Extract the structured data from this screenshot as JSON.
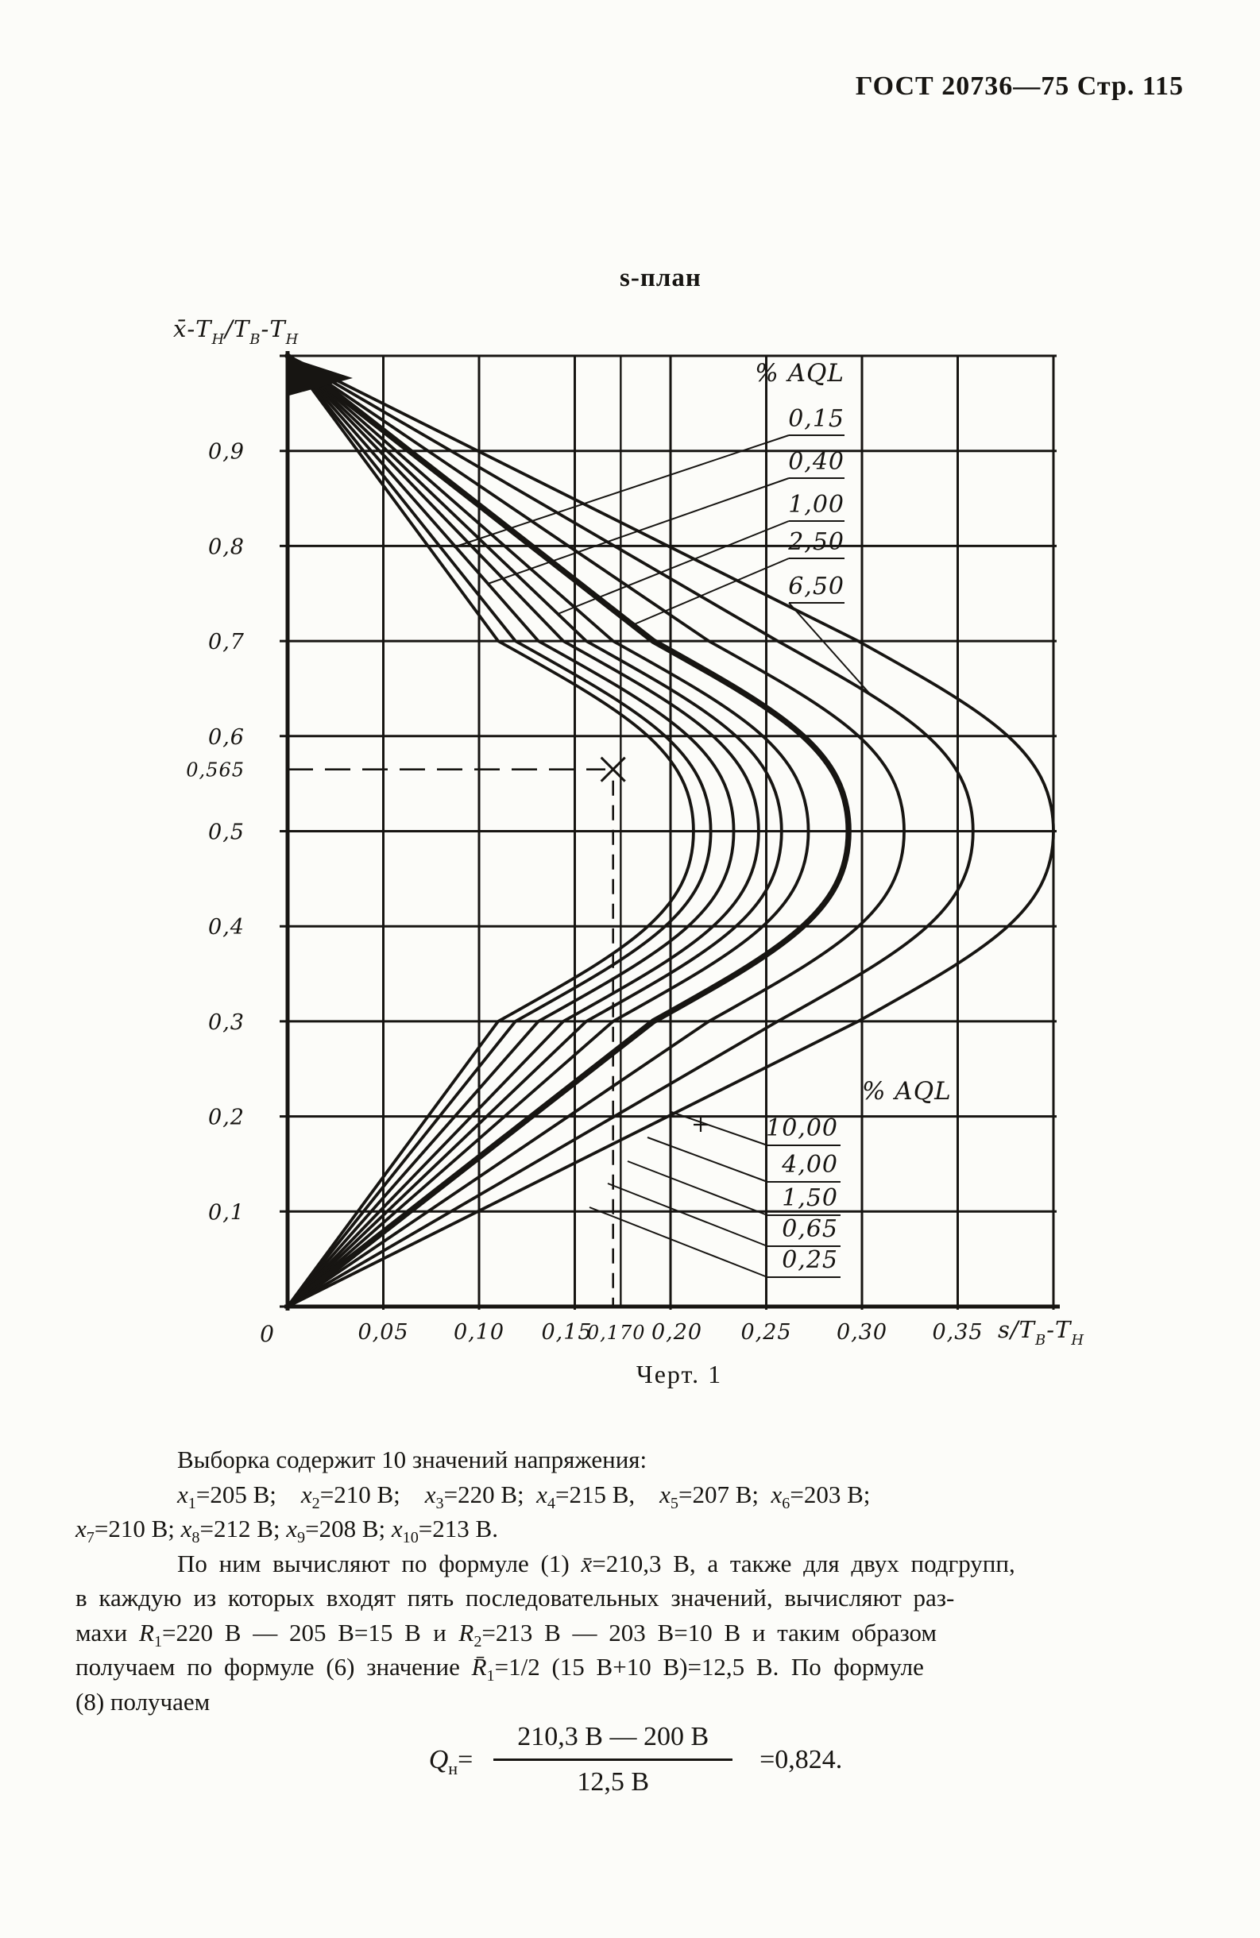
{
  "header": {
    "text": "ГОСТ 20736—75 Стр. 115"
  },
  "figure": {
    "title": "s-план",
    "caption": "Черт. 1"
  },
  "chart_data": {
    "type": "line",
    "title": "s-план",
    "x_axis_label": "s/Т_{В}-Т_{Н}",
    "y_axis_label": "x̄-Т_{Н}/Т_{В}-Т_{Н}",
    "x_range": [
      0,
      0.4
    ],
    "y_range": [
      0,
      1.0
    ],
    "grid": true,
    "origin_label": "0",
    "x_tick_values": [
      0.05,
      0.1,
      0.15,
      0.2,
      0.25,
      0.3,
      0.35
    ],
    "x_tick_labels": [
      "0,05",
      "0,10",
      "0,15",
      "0,20",
      "0,25",
      "0,30",
      "0,35"
    ],
    "x_special_tick": {
      "value": 0.17,
      "label": "0,170"
    },
    "y_tick_values": [
      0.1,
      0.2,
      0.3,
      0.4,
      0.5,
      0.6,
      0.7,
      0.8,
      0.9
    ],
    "y_tick_labels": [
      "0,1",
      "0,2",
      "0,3",
      "0,4",
      "0,5",
      "0,6",
      "0,7",
      "0,8",
      "0,9"
    ],
    "y_special_tick": {
      "value": 0.565,
      "label": "0,565"
    },
    "group_label": "% AQL",
    "curves": [
      {
        "aql": "0,15",
        "nose_s": 0.212,
        "thick": false
      },
      {
        "aql": "0,25",
        "nose_s": 0.221,
        "thick": false
      },
      {
        "aql": "0,40",
        "nose_s": 0.233,
        "thick": false
      },
      {
        "aql": "0,65",
        "nose_s": 0.246,
        "thick": false
      },
      {
        "aql": "1,00",
        "nose_s": 0.258,
        "thick": false
      },
      {
        "aql": "1,50",
        "nose_s": 0.272,
        "thick": false
      },
      {
        "aql": "2,50",
        "nose_s": 0.293,
        "thick": true
      },
      {
        "aql": "4,00",
        "nose_s": 0.322,
        "thick": false
      },
      {
        "aql": "6,50",
        "nose_s": 0.358,
        "thick": false
      },
      {
        "aql": "10,00",
        "nose_s": 0.4,
        "thick": false
      }
    ],
    "upper_label_order": [
      "0,15",
      "0,40",
      "1,00",
      "2,50",
      "6,50"
    ],
    "lower_label_order": [
      "10,00",
      "4,00",
      "1,50",
      "0,65",
      "0,25"
    ],
    "example": {
      "s": 0.17,
      "mean_norm": 0.565,
      "reference_line_s": 0.174
    }
  },
  "text_block": {
    "lines": [
      {
        "indent": true,
        "spread": false,
        "text": "Выборка содержит 10 значений напряжения:"
      },
      {
        "indent": true,
        "spread": false,
        "text": "*x*_{1}=205 В; *x*_{2}=210 В; *x*_{3}=220 В; *x*_{4}=215 В, *x*_{5}=207 В; *x*_{6}=203 В;"
      },
      {
        "indent": false,
        "spread": false,
        "text": "*x*_{7}=210 В; *x*_{8}=212 В; *x*_{9}=208 В; *x*_{10}=213 В."
      },
      {
        "indent": true,
        "spread": true,
        "text": "По ним вычисляют по формуле (1) *x̄*=210,3 В, а также для двух подгрупп,"
      },
      {
        "indent": false,
        "spread": true,
        "text": "в каждую из которых входят пять последовательных значений, вычисляют раз-"
      },
      {
        "indent": false,
        "spread": true,
        "text": "махи *R*_{1}=220 В — 205 В=15 В и *R*_{2}=213 В — 203 В=10 В и таким образом"
      },
      {
        "indent": false,
        "spread": true,
        "text": "получаем по формуле (6) значение *R̄*_{1}=1/2 (15 В+10 В)=12,5 В. По формуле"
      },
      {
        "indent": false,
        "spread": false,
        "text": "(8) получаем"
      }
    ]
  },
  "formula": {
    "lhs": "*Q*_{н}=",
    "numerator": "210,3 В — 200 В",
    "denominator": "12,5 В",
    "result": "=0,824."
  }
}
